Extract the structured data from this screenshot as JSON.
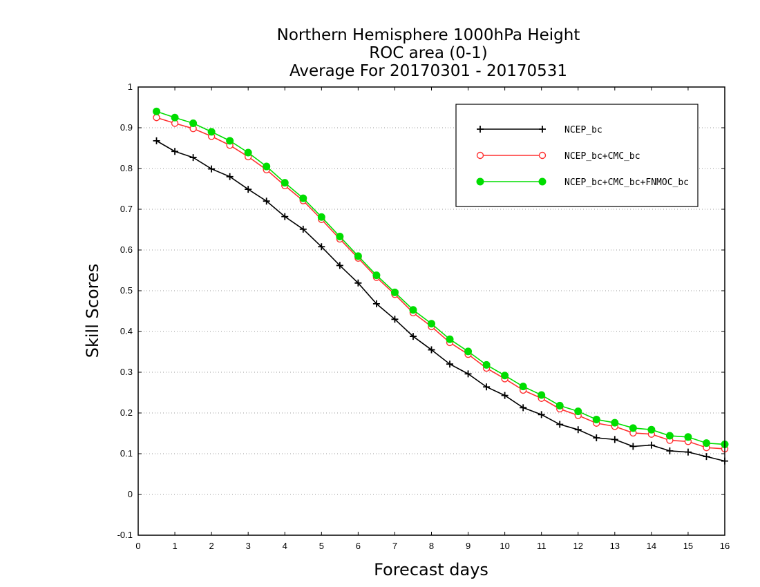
{
  "chart_data": {
    "type": "line",
    "title_lines": [
      "Northern Hemisphere 1000hPa Height",
      "ROC area (0-1)",
      "Average For 20170301 - 20170531"
    ],
    "xlabel": "Forecast days",
    "ylabel": "Skill Scores",
    "xlim": [
      0,
      16
    ],
    "ylim": [
      -0.1,
      1
    ],
    "x_ticks": [
      0,
      1,
      2,
      3,
      4,
      5,
      6,
      7,
      8,
      9,
      10,
      11,
      12,
      13,
      14,
      15,
      16
    ],
    "y_ticks": [
      -0.1,
      0,
      0.1,
      0.2,
      0.3,
      0.4,
      0.5,
      0.6,
      0.7,
      0.8,
      0.9,
      1
    ],
    "y_tick_labels": [
      "-0.1",
      "0",
      "0.1",
      "0.2",
      "0.3",
      "0.4",
      "0.5",
      "0.6",
      "0.7",
      "0.8",
      "0.9",
      "1"
    ],
    "grid": "horizontal dotted",
    "legend_position": "top-right",
    "x": [
      0.5,
      1.0,
      1.5,
      2.0,
      2.5,
      3.0,
      3.5,
      4.0,
      4.5,
      5.0,
      5.5,
      6.0,
      6.5,
      7.0,
      7.5,
      8.0,
      8.5,
      9.0,
      9.5,
      10.0,
      10.5,
      11.0,
      11.5,
      12.0,
      12.5,
      13.0,
      13.5,
      14.0,
      14.5,
      15.0,
      15.5,
      16.0
    ],
    "series": [
      {
        "name": "NCEP_bc",
        "color": "#000000",
        "marker": "plus",
        "values": [
          0.868,
          0.842,
          0.827,
          0.799,
          0.78,
          0.749,
          0.72,
          0.682,
          0.651,
          0.608,
          0.562,
          0.519,
          0.468,
          0.43,
          0.388,
          0.355,
          0.32,
          0.296,
          0.264,
          0.243,
          0.213,
          0.196,
          0.172,
          0.159,
          0.139,
          0.135,
          0.118,
          0.121,
          0.107,
          0.104,
          0.093,
          0.082
        ]
      },
      {
        "name": "NCEP_bc+CMC_bc",
        "color": "#ff3030",
        "marker": "open-circle",
        "values": [
          0.925,
          0.911,
          0.898,
          0.879,
          0.857,
          0.829,
          0.797,
          0.758,
          0.721,
          0.675,
          0.627,
          0.58,
          0.533,
          0.491,
          0.446,
          0.412,
          0.373,
          0.344,
          0.31,
          0.284,
          0.256,
          0.236,
          0.21,
          0.194,
          0.175,
          0.167,
          0.151,
          0.148,
          0.133,
          0.13,
          0.115,
          0.112
        ]
      },
      {
        "name": "NCEP_bc+CMC_bc+FNMOC_bc",
        "color": "#00dd00",
        "marker": "filled-circle",
        "values": [
          0.94,
          0.925,
          0.911,
          0.89,
          0.868,
          0.839,
          0.805,
          0.765,
          0.727,
          0.681,
          0.633,
          0.585,
          0.538,
          0.496,
          0.453,
          0.419,
          0.381,
          0.351,
          0.318,
          0.292,
          0.265,
          0.244,
          0.218,
          0.204,
          0.184,
          0.176,
          0.163,
          0.159,
          0.144,
          0.141,
          0.126,
          0.123
        ]
      }
    ]
  }
}
